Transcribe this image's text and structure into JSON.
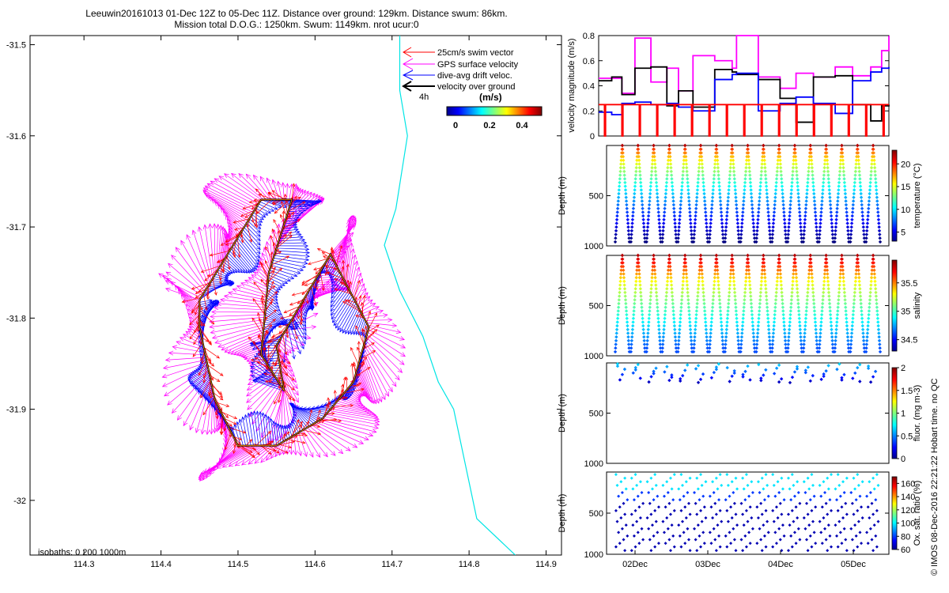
{
  "title": {
    "line1": "Leeuwin20161013 01-Dec 12Z to 05-Dec 11Z. Distance over ground: 129km. Distance swum: 86km.",
    "line2": "Mission total D.O.G.: 1250km. Swum: 1149km. nrot ucur:0"
  },
  "map": {
    "isobaths_label": "isobaths: 0   200  1000m",
    "legend": [
      "25cm/s swim vector",
      "GPS surface velocity",
      "dive-avg drift veloc.",
      "velocity over ground"
    ],
    "legend_tag": "4h",
    "colorbar_title": "(m/s)",
    "colorbar_ticks": [
      "0",
      "0.2",
      "0.4"
    ],
    "colors": {
      "swim": "#ff0000",
      "gps": "#ff00ff",
      "drift": "#0000ff",
      "ground": "#000000",
      "coast": "#00e5e5"
    }
  },
  "credit": "© IMOS 08-Dec-2016 22:21:22 Hobart time. no QC",
  "chart_data": [
    {
      "type": "scatter",
      "subtype": "glider track velocity vector map",
      "xlim": [
        114.23,
        114.92
      ],
      "ylim": [
        -32.06,
        -31.49
      ],
      "xticks": [
        "114.3",
        "114.4",
        "114.5",
        "114.6",
        "114.7",
        "114.8",
        "114.9"
      ],
      "yticks": [
        "-31.5",
        "-31.6",
        "-31.7",
        "-31.8",
        "-31.9",
        "-32"
      ],
      "track_waypoints": [
        [
          114.45,
          -31.78
        ],
        [
          114.53,
          -31.67
        ],
        [
          114.57,
          -31.67
        ],
        [
          114.54,
          -31.75
        ],
        [
          114.53,
          -31.84
        ],
        [
          114.56,
          -31.88
        ],
        [
          114.55,
          -31.83
        ],
        [
          114.62,
          -31.73
        ],
        [
          114.67,
          -31.81
        ],
        [
          114.65,
          -31.87
        ],
        [
          114.61,
          -31.91
        ],
        [
          114.55,
          -31.94
        ],
        [
          114.5,
          -31.94
        ],
        [
          114.47,
          -31.89
        ],
        [
          114.45,
          -31.81
        ],
        [
          114.45,
          -31.78
        ]
      ],
      "coastline": [
        [
          114.71,
          -31.49
        ],
        [
          114.71,
          -31.55
        ],
        [
          114.72,
          -31.6
        ],
        [
          114.705,
          -31.68
        ],
        [
          114.69,
          -31.72
        ],
        [
          114.71,
          -31.77
        ],
        [
          114.74,
          -31.82
        ],
        [
          114.76,
          -31.87
        ],
        [
          114.78,
          -31.9
        ],
        [
          114.79,
          -31.94
        ],
        [
          114.8,
          -31.98
        ],
        [
          114.81,
          -32.02
        ],
        [
          114.86,
          -32.06
        ]
      ]
    },
    {
      "type": "line",
      "ylabel": "velocity magnitude (m/s)",
      "ylim": [
        0,
        0.8
      ],
      "yticks": [
        "0",
        "0.2",
        "0.4",
        "0.6",
        "0.8"
      ],
      "xlim": [
        0,
        4
      ],
      "series": [
        {
          "color": "#ff00ff",
          "values": [
            [
              0,
              0.46
            ],
            [
              0.18,
              0.46
            ],
            [
              0.32,
              0.34
            ],
            [
              0.5,
              0.78
            ],
            [
              0.72,
              0.43
            ],
            [
              0.94,
              0.54
            ],
            [
              1.1,
              0.36
            ],
            [
              1.3,
              0.64
            ],
            [
              1.6,
              0.6
            ],
            [
              1.84,
              0.54
            ],
            [
              1.9,
              0.8
            ],
            [
              2.2,
              0.47
            ],
            [
              2.5,
              0.38
            ],
            [
              2.72,
              0.5
            ],
            [
              2.96,
              0.47
            ],
            [
              3.26,
              0.55
            ],
            [
              3.5,
              0.48
            ],
            [
              3.75,
              0.55
            ],
            [
              3.9,
              0.68
            ],
            [
              4,
              0.8
            ]
          ]
        },
        {
          "color": "#000000",
          "values": [
            [
              0,
              0.44
            ],
            [
              0.18,
              0.47
            ],
            [
              0.32,
              0.33
            ],
            [
              0.5,
              0.54
            ],
            [
              0.72,
              0.55
            ],
            [
              0.94,
              0.24
            ],
            [
              1.1,
              0.36
            ],
            [
              1.3,
              0.23
            ],
            [
              1.6,
              0.53
            ],
            [
              1.84,
              0.51
            ],
            [
              1.9,
              0.49
            ],
            [
              2.2,
              0.45
            ],
            [
              2.5,
              0.3
            ],
            [
              2.72,
              0.11
            ],
            [
              2.96,
              0.47
            ],
            [
              3.26,
              0.48
            ],
            [
              3.5,
              0.25
            ],
            [
              3.75,
              0.12
            ],
            [
              3.9,
              0.24
            ],
            [
              4,
              0.25
            ]
          ]
        },
        {
          "color": "#0000ff",
          "values": [
            [
              0,
              0.19
            ],
            [
              0.18,
              0.17
            ],
            [
              0.32,
              0.26
            ],
            [
              0.5,
              0.27
            ],
            [
              0.72,
              0.25
            ],
            [
              0.94,
              0.26
            ],
            [
              1.1,
              0.23
            ],
            [
              1.3,
              0.2
            ],
            [
              1.6,
              0.45
            ],
            [
              1.84,
              0.49
            ],
            [
              1.9,
              0.5
            ],
            [
              2.2,
              0.2
            ],
            [
              2.5,
              0.26
            ],
            [
              2.72,
              0.31
            ],
            [
              2.96,
              0.26
            ],
            [
              3.26,
              0.18
            ],
            [
              3.5,
              0.44
            ],
            [
              3.75,
              0.51
            ],
            [
              3.9,
              0.54
            ],
            [
              4,
              0.55
            ]
          ]
        },
        {
          "color": "#ff0000",
          "values": [
            [
              0,
              0.25
            ],
            [
              4,
              0.25
            ]
          ],
          "dips_to_zero_every": 0.24
        }
      ]
    },
    {
      "type": "scatter",
      "ylabel": "Depth (m)",
      "yticks": [
        "500",
        "1000"
      ],
      "ylim": [
        0,
        1000
      ],
      "colorbar_label": "temperature (°C)",
      "colorbar_ticks": [
        "5",
        "10",
        "15",
        "20"
      ],
      "colorbar_range": [
        3,
        23
      ],
      "dives": 17,
      "max_depth": 960
    },
    {
      "type": "scatter",
      "ylabel": "Depth (m)",
      "yticks": [
        "500",
        "1000"
      ],
      "ylim": [
        0,
        1000
      ],
      "colorbar_label": "salinity",
      "colorbar_ticks": [
        "34.5",
        "35",
        "35.5"
      ],
      "colorbar_range": [
        34.3,
        35.9
      ],
      "dives": 17,
      "max_depth": 960
    },
    {
      "type": "scatter",
      "ylabel": "Depth (m)",
      "yticks": [
        "500",
        "1000"
      ],
      "ylim": [
        0,
        1000
      ],
      "colorbar_label": "fluor. (mg m-3)",
      "colorbar_ticks": [
        "0",
        "0.5",
        "1",
        "1.5",
        "2"
      ],
      "colorbar_range": [
        0,
        2
      ],
      "dives": 17,
      "max_depth": 200
    },
    {
      "type": "scatter",
      "ylabel": "Depth (m)",
      "yticks": [
        "500",
        "1000"
      ],
      "ylim": [
        0,
        1000
      ],
      "colorbar_label": "Ox. sat. ratio (%)",
      "colorbar_ticks": [
        "60",
        "80",
        "100",
        "120",
        "140",
        "160"
      ],
      "colorbar_range": [
        60,
        170
      ],
      "dives": 17,
      "max_depth": 1000,
      "xticks": [
        "02Dec",
        "03Dec",
        "04Dec",
        "05Dec"
      ]
    }
  ]
}
